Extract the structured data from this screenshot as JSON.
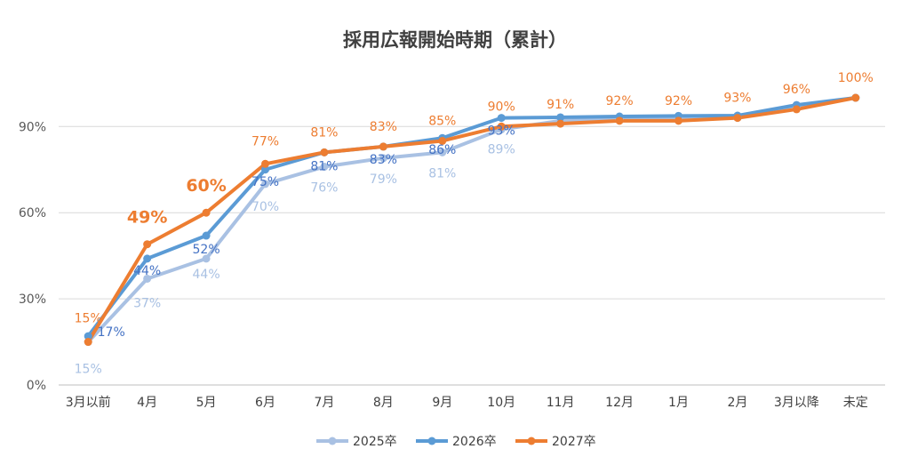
{
  "chart_data": {
    "type": "line",
    "title": "採用広報開始時期（累計）",
    "categories": [
      "3月以前",
      "4月",
      "5月",
      "6月",
      "7月",
      "8月",
      "9月",
      "10月",
      "11月",
      "12月",
      "1月",
      "2月",
      "3月以降",
      "未定"
    ],
    "ylim": [
      0,
      100
    ],
    "yticks": [
      0,
      30,
      60,
      90
    ],
    "ytick_labels": [
      "0%",
      "30%",
      "60%",
      "90%"
    ],
    "grid": true,
    "legend": "bottom",
    "series": [
      {
        "name": "2025卒",
        "color": "#a9c1e3",
        "values": [
          15,
          37,
          44,
          70,
          76,
          79,
          81,
          89,
          92,
          92.5,
          93,
          93,
          97,
          100
        ],
        "labels": [
          "15%",
          "37%",
          "44%",
          "70%",
          "76%",
          "79%",
          "81%",
          "89%",
          "",
          "",
          "",
          "",
          "",
          ""
        ]
      },
      {
        "name": "2026卒",
        "color": "#5b9bd5",
        "values": [
          17,
          44,
          52,
          75,
          81,
          83,
          86,
          93,
          93.2,
          93.5,
          93.7,
          93.8,
          97.5,
          100
        ],
        "labels": [
          "17%",
          "44%",
          "52%",
          "75%",
          "81%",
          "83%",
          "86%",
          "93%",
          "",
          "",
          "",
          "",
          "",
          ""
        ]
      },
      {
        "name": "2027卒",
        "color": "#ed7d31",
        "values": [
          15,
          49,
          60,
          77,
          81,
          83,
          85,
          90,
          91,
          92,
          92,
          93,
          96,
          100
        ],
        "labels": [
          "15%",
          "49%",
          "60%",
          "77%",
          "81%",
          "83%",
          "85%",
          "90%",
          "91%",
          "92%",
          "92%",
          "93%",
          "96%",
          "100%"
        ],
        "bold_label_indices": [
          1,
          2
        ]
      }
    ]
  }
}
